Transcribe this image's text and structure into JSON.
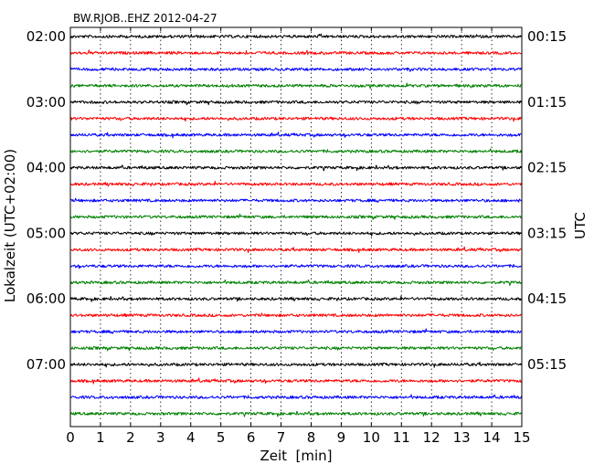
{
  "chart_data": {
    "type": "line",
    "subtype": "dayplot-seismogram",
    "title": "BW.RJOB..EHZ 2012-04-27",
    "xlabel": "Zeit  [min]",
    "ylabel_left": "Lokalzeit (UTC+02:00)",
    "ylabel_right": "UTC",
    "xlim": [
      0,
      15
    ],
    "x_ticks": [
      0,
      1,
      2,
      3,
      4,
      5,
      6,
      7,
      8,
      9,
      10,
      11,
      12,
      13,
      14,
      15
    ],
    "grid": "vertical dotted lines at each minute",
    "trace_interval_minutes": 15,
    "color_cycle": [
      "#000000",
      "#ff0000",
      "#0000ff",
      "#008000"
    ],
    "left_tick_labels": [
      "02:00",
      "03:00",
      "04:00",
      "05:00",
      "06:00",
      "07:00"
    ],
    "right_tick_labels": [
      "00:15",
      "01:15",
      "02:15",
      "03:15",
      "04:15",
      "05:15"
    ],
    "left_tick_trace_index": [
      0,
      4,
      8,
      12,
      16,
      20
    ],
    "traces": [
      {
        "start_local": "02:00",
        "color": "#000000"
      },
      {
        "start_local": "02:15",
        "color": "#ff0000"
      },
      {
        "start_local": "02:30",
        "color": "#0000ff"
      },
      {
        "start_local": "02:45",
        "color": "#008000"
      },
      {
        "start_local": "03:00",
        "color": "#000000"
      },
      {
        "start_local": "03:15",
        "color": "#ff0000"
      },
      {
        "start_local": "03:30",
        "color": "#0000ff"
      },
      {
        "start_local": "03:45",
        "color": "#008000"
      },
      {
        "start_local": "04:00",
        "color": "#000000"
      },
      {
        "start_local": "04:15",
        "color": "#ff0000"
      },
      {
        "start_local": "04:30",
        "color": "#0000ff"
      },
      {
        "start_local": "04:45",
        "color": "#008000"
      },
      {
        "start_local": "05:00",
        "color": "#000000"
      },
      {
        "start_local": "05:15",
        "color": "#ff0000"
      },
      {
        "start_local": "05:30",
        "color": "#0000ff"
      },
      {
        "start_local": "05:45",
        "color": "#008000"
      },
      {
        "start_local": "06:00",
        "color": "#000000"
      },
      {
        "start_local": "06:15",
        "color": "#ff0000"
      },
      {
        "start_local": "06:30",
        "color": "#0000ff"
      },
      {
        "start_local": "06:45",
        "color": "#008000"
      },
      {
        "start_local": "07:00",
        "color": "#000000"
      },
      {
        "start_local": "07:15",
        "color": "#ff0000"
      },
      {
        "start_local": "07:30",
        "color": "#0000ff"
      },
      {
        "start_local": "07:45",
        "color": "#008000"
      }
    ]
  }
}
